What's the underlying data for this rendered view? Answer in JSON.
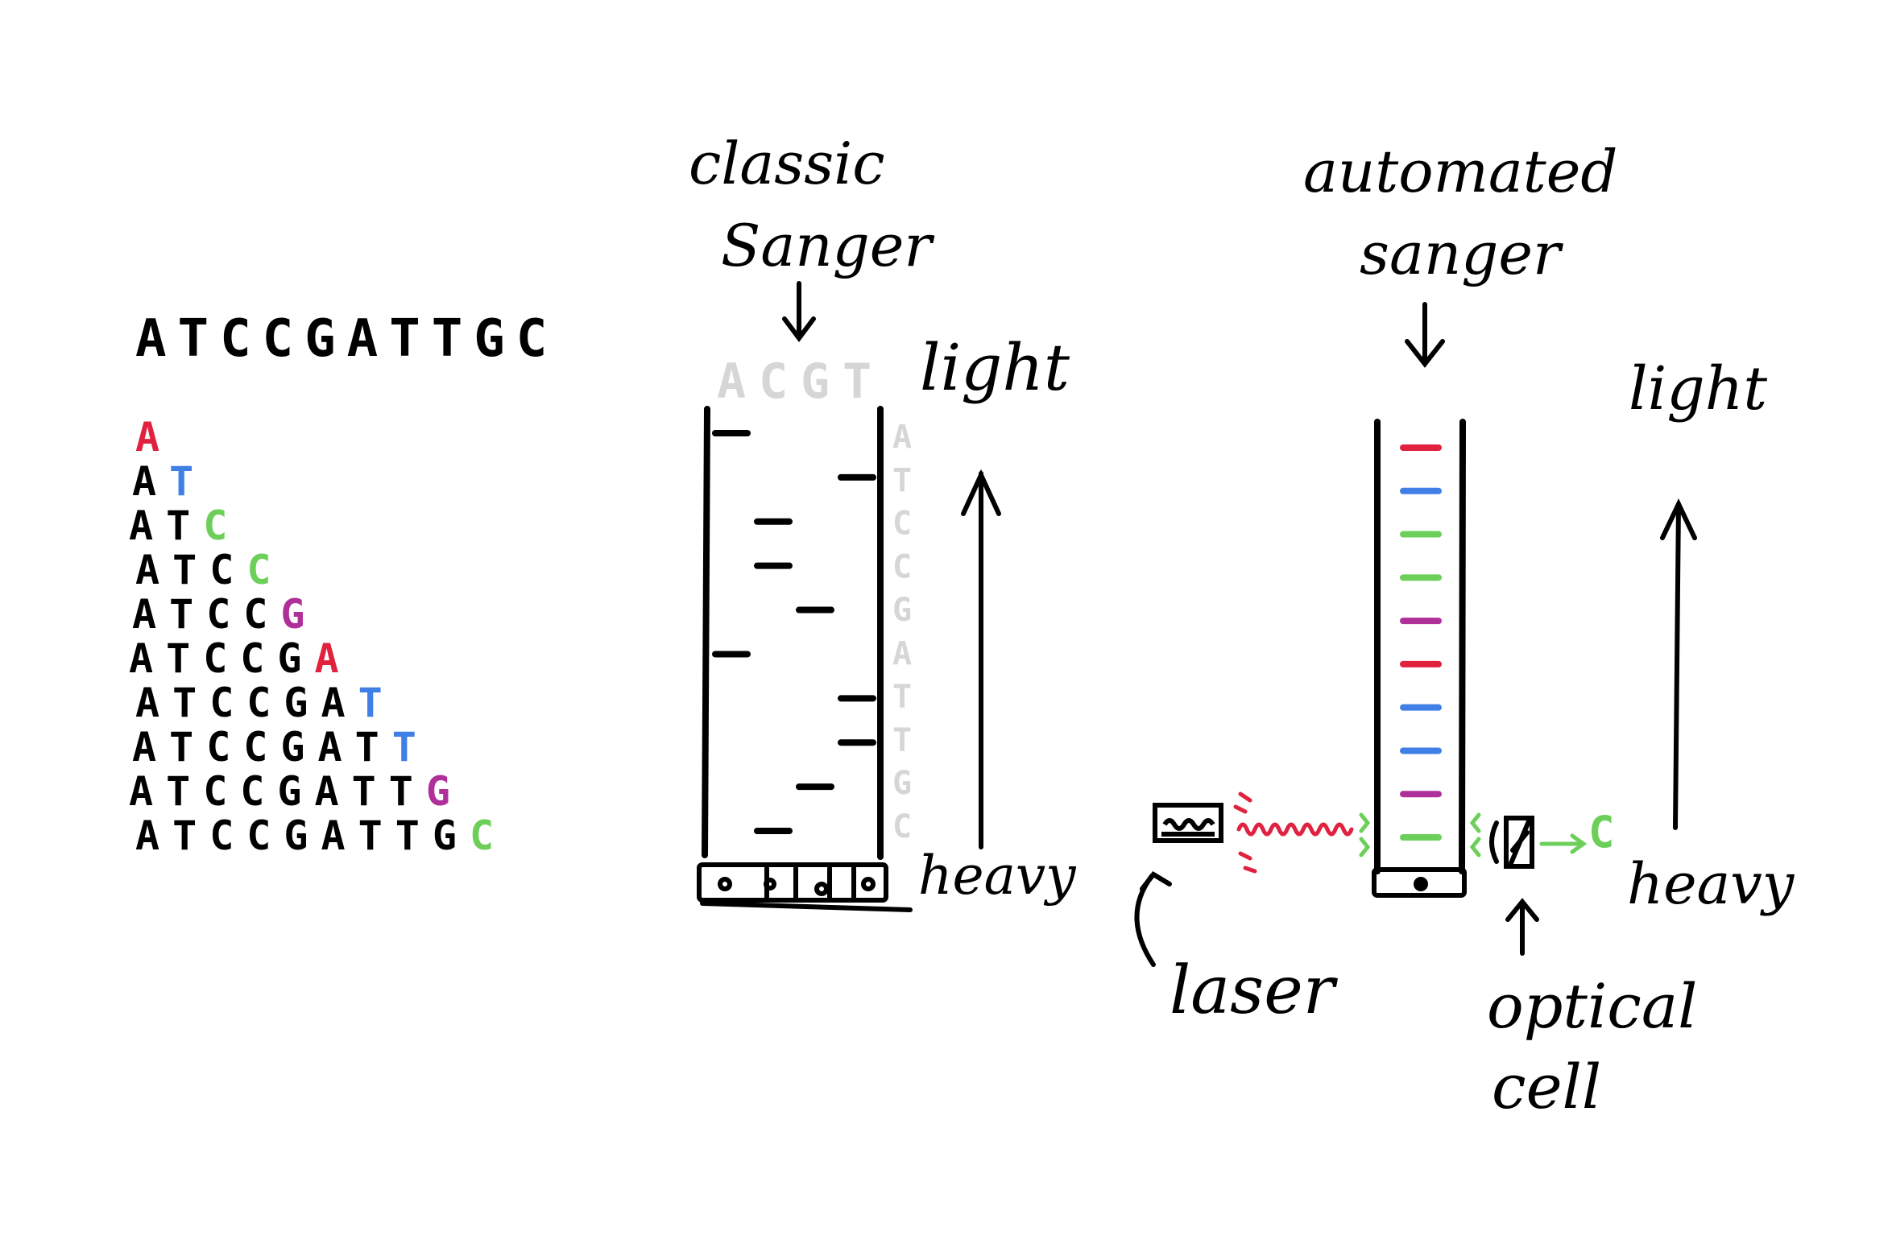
{
  "colors": {
    "ink": "#000000",
    "A": "#e0223f",
    "T": "#3f7fe6",
    "C": "#6ccf5a",
    "G": "#b0309a",
    "faint": "#d6d6d6"
  },
  "sequence": {
    "full": "ATCCGATTGC",
    "fragments": [
      {
        "prefix": "",
        "last": "A",
        "base": "A"
      },
      {
        "prefix": "A",
        "last": "T",
        "base": "T"
      },
      {
        "prefix": "AT",
        "last": "C",
        "base": "C"
      },
      {
        "prefix": "ATC",
        "last": "C",
        "base": "C"
      },
      {
        "prefix": "ATCC",
        "last": "G",
        "base": "G"
      },
      {
        "prefix": "ATCCG",
        "last": "A",
        "base": "A"
      },
      {
        "prefix": "ATCCGA",
        "last": "T",
        "base": "T"
      },
      {
        "prefix": "ATCCGAT",
        "last": "T",
        "base": "T"
      },
      {
        "prefix": "ATCCGATT",
        "last": "G",
        "base": "G"
      },
      {
        "prefix": "ATCCGATTG",
        "last": "C",
        "base": "C"
      }
    ]
  },
  "classic": {
    "title_line1": "classic",
    "title_line2": "Sanger",
    "lane_headers": [
      "A",
      "C",
      "G",
      "T"
    ],
    "band_lanes": [
      "A",
      "T",
      "C",
      "C",
      "G",
      "A",
      "T",
      "T",
      "G",
      "C"
    ],
    "read": [
      "A",
      "T",
      "C",
      "C",
      "G",
      "A",
      "T",
      "T",
      "G",
      "C"
    ],
    "light_label": "light",
    "heavy_label": "heavy",
    "wells_icon": "sample-wells-icon"
  },
  "automated": {
    "title_line1": "automated",
    "title_line2": "sanger",
    "bands": [
      "A",
      "T",
      "C",
      "C",
      "G",
      "A",
      "T",
      "T",
      "G",
      "C"
    ],
    "light_label": "light",
    "heavy_label": "heavy",
    "laser_label": "laser",
    "optical_label_line1": "optical",
    "optical_label_line2": "cell",
    "detected_base": "C",
    "icons": [
      "laser-icon",
      "optical-cell-icon",
      "down-arrow-icon",
      "up-arrow-icon"
    ]
  }
}
